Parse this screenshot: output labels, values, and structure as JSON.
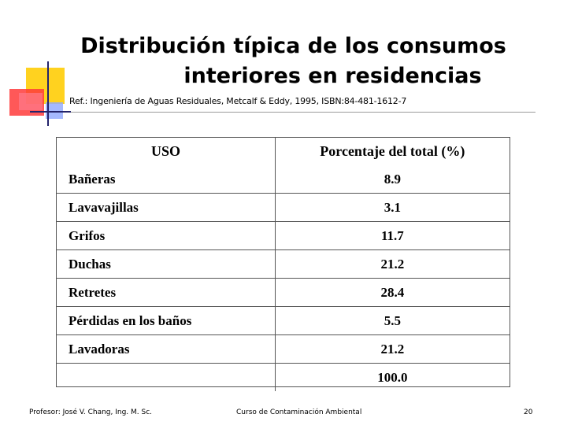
{
  "title": {
    "line1": "Distribución típica de los consumos",
    "line2": "interiores en residencias"
  },
  "reference": "Ref.: Ingeniería de Aguas Residuales, Metcalf & Eddy, 1995, ISBN:84-481-1612-7",
  "table": {
    "headers": {
      "uso": "USO",
      "porcentaje": "Porcentaje del total (%)"
    },
    "rows": [
      {
        "uso": "Bañeras",
        "porcentaje": "8.9"
      },
      {
        "uso": "Lavavajillas",
        "porcentaje": "3.1"
      },
      {
        "uso": "Grifos",
        "porcentaje": "11.7"
      },
      {
        "uso": "Duchas",
        "porcentaje": "21.2"
      },
      {
        "uso": "Retretes",
        "porcentaje": "28.4"
      },
      {
        "uso": "Pérdidas en los baños",
        "porcentaje": "5.5"
      },
      {
        "uso": "Lavadoras",
        "porcentaje": "21.2"
      }
    ],
    "total": "100.0"
  },
  "footer": {
    "professor": "Profesor: José V. Chang, Ing. M. Sc.",
    "course": "Curso de Contaminación Ambiental",
    "page_number": "20"
  },
  "colors": {
    "decor_yellow": "#ffd21f",
    "decor_red": "#ff3b3b",
    "decor_blue": "#8fa8ff",
    "decor_navy": "#23236b"
  }
}
